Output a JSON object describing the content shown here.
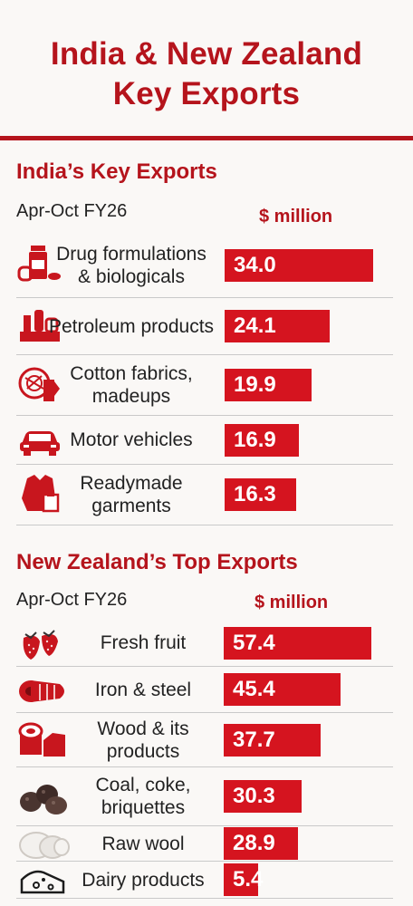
{
  "title_line1": "India & New Zealand",
  "title_line2": "Key Exports",
  "colors": {
    "accent": "#b5141c",
    "bar": "#d5141f"
  },
  "chart_data": [
    {
      "type": "bar",
      "title": "India’s Key Exports",
      "subtitle": "Apr-Oct FY26",
      "unit": "$ million",
      "categories": [
        "Drug formulations & biologicals",
        "Petroleum products",
        "Cotton fabrics, madeups",
        "Motor vehicles",
        "Readymade garments"
      ],
      "labels": [
        [
          "Drug formulations",
          "& biologicals"
        ],
        [
          "Petroleum products"
        ],
        [
          "Cotton fabrics,",
          "madeups"
        ],
        [
          "Motor vehicles"
        ],
        [
          "Readymade",
          "garments"
        ]
      ],
      "values": [
        34.0,
        24.1,
        19.9,
        16.9,
        16.3
      ],
      "value_labels": [
        "34.0",
        "24.1",
        "19.9",
        "16.9",
        "16.3"
      ],
      "icons": [
        "medicine-bottle-icon",
        "oil-refinery-icon",
        "fabric-roll-icon",
        "car-icon",
        "shirt-icon"
      ]
    },
    {
      "type": "bar",
      "title": "New Zealand’s Top Exports",
      "subtitle": "Apr-Oct FY26",
      "unit": "$ million",
      "categories": [
        "Fresh fruit",
        "Iron & steel",
        "Wood & its products",
        "Coal, coke, briquettes",
        "Raw wool",
        "Dairy products"
      ],
      "labels": [
        [
          "Fresh fruit"
        ],
        [
          "Iron & steel"
        ],
        [
          "Wood & its",
          "products"
        ],
        [
          "Coal, coke,",
          "briquettes"
        ],
        [
          "Raw wool"
        ],
        [
          "Dairy products"
        ]
      ],
      "values": [
        57.4,
        45.4,
        37.7,
        30.3,
        28.9,
        5.4
      ],
      "value_labels": [
        "57.4",
        "45.4",
        "37.7",
        "30.3",
        "28.9",
        "5.4"
      ],
      "icons": [
        "strawberry-icon",
        "steel-coil-icon",
        "wood-stack-icon",
        "coal-icon",
        "wool-icon",
        "cheese-icon"
      ]
    }
  ]
}
